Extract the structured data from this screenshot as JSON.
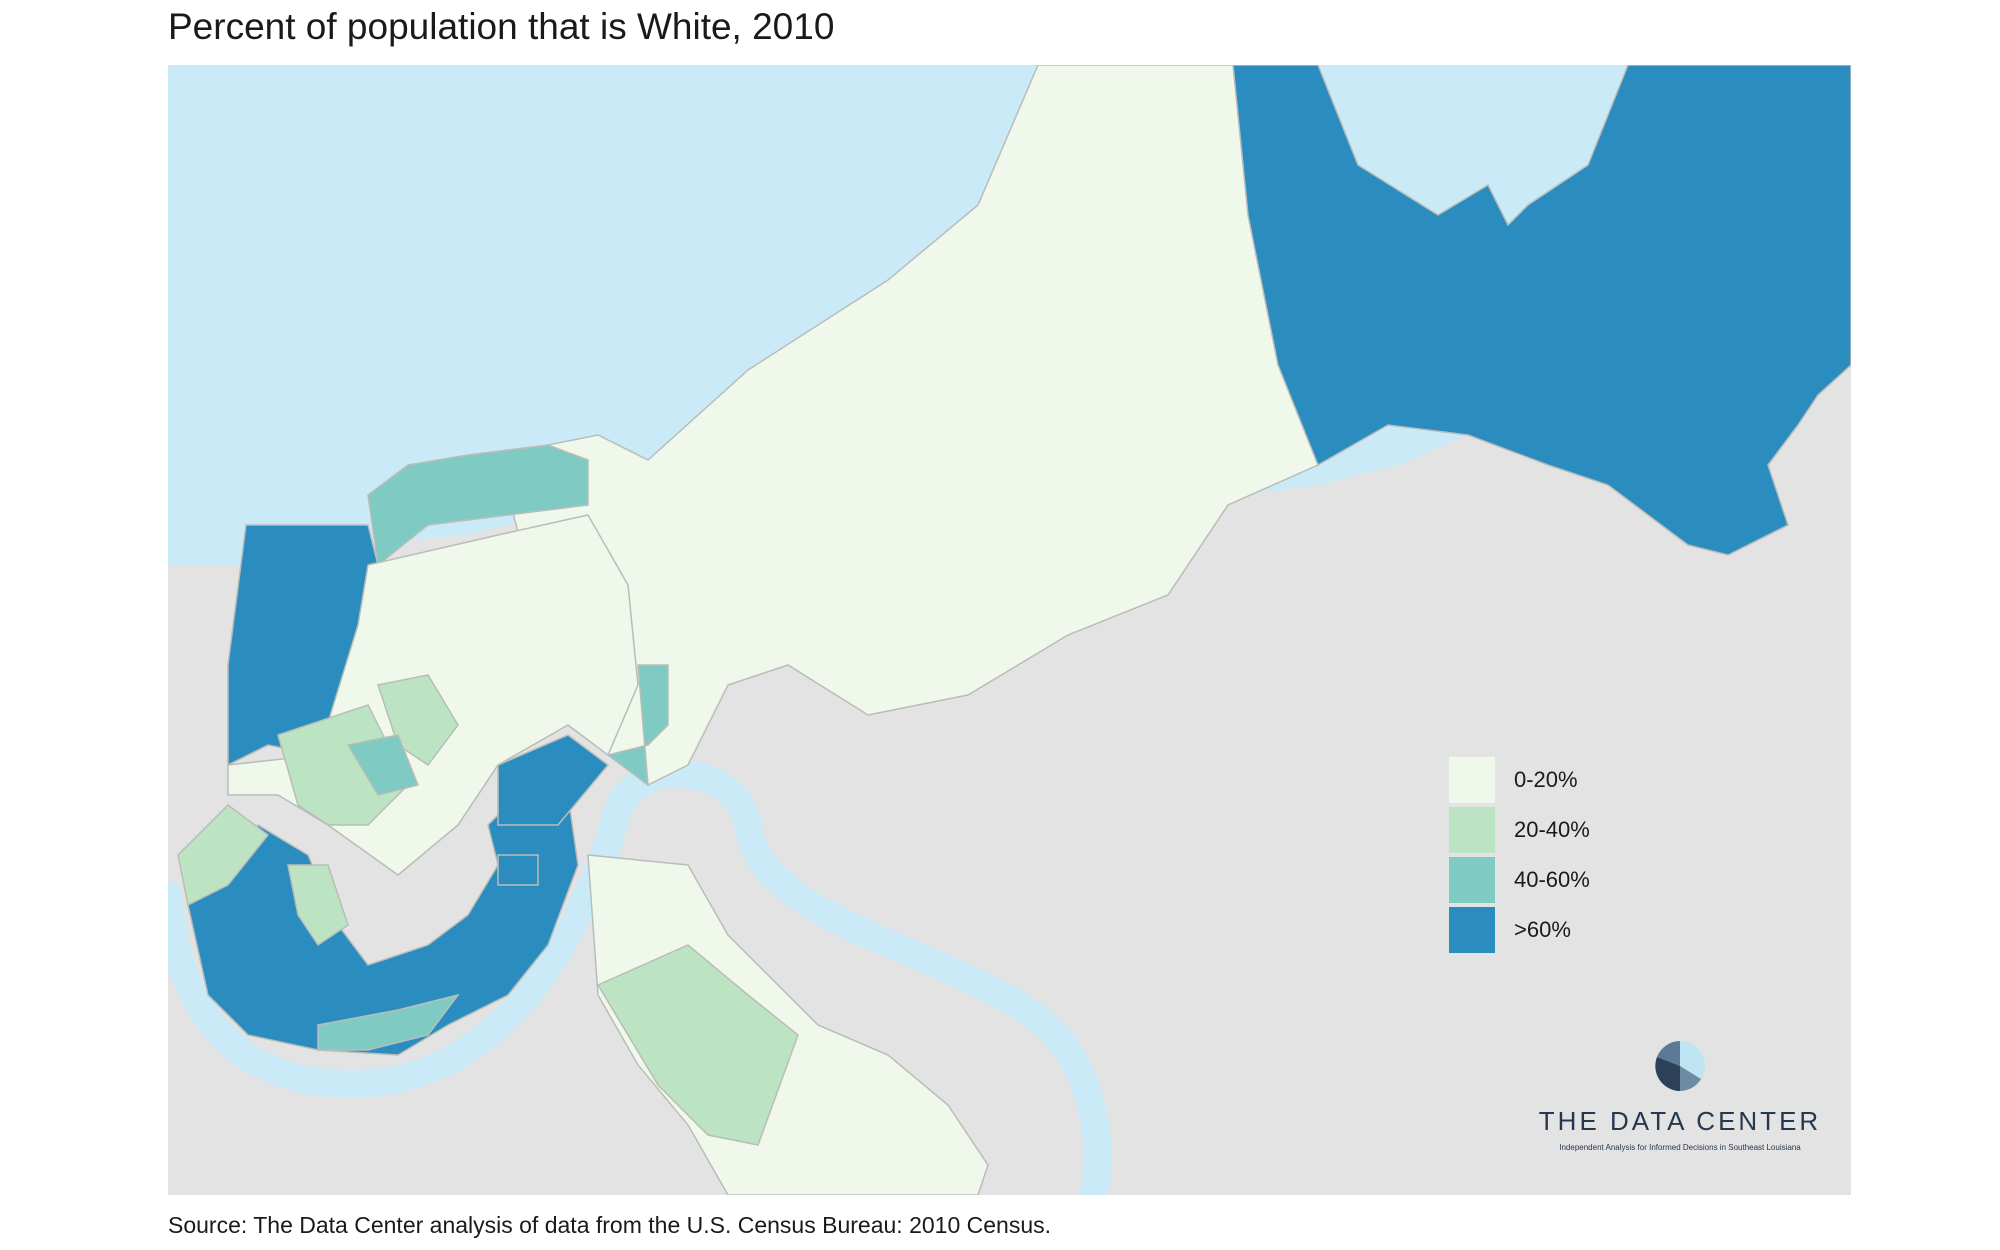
{
  "title": "Percent of population that is White, 2010",
  "source": "Source: The Data Center analysis of data from the U.S. Census Bureau: 2010 Census.",
  "colors": {
    "water": "#cbeaf7",
    "land_outside": "#e3e3e3",
    "class_0_20": "#eff8ea",
    "class_20_40": "#bce4c2",
    "class_40_60": "#7fcbc4",
    "class_60_plus": "#2b8cbf",
    "boundary": "#b9bdb9"
  },
  "legend": [
    {
      "label": "0-20%",
      "color": "#eff8ea"
    },
    {
      "label": "20-40%",
      "color": "#bce4c2"
    },
    {
      "label": "40-60%",
      "color": "#7fcbc4"
    },
    {
      "label": ">60%",
      "color": "#2b8cbf"
    }
  ],
  "brand": {
    "name": "THE DATA CENTER",
    "tagline": "Independent Analysis for Informed Decisions in Southeast Louisiana",
    "logo_icon": "pie-chart-logo-icon"
  }
}
